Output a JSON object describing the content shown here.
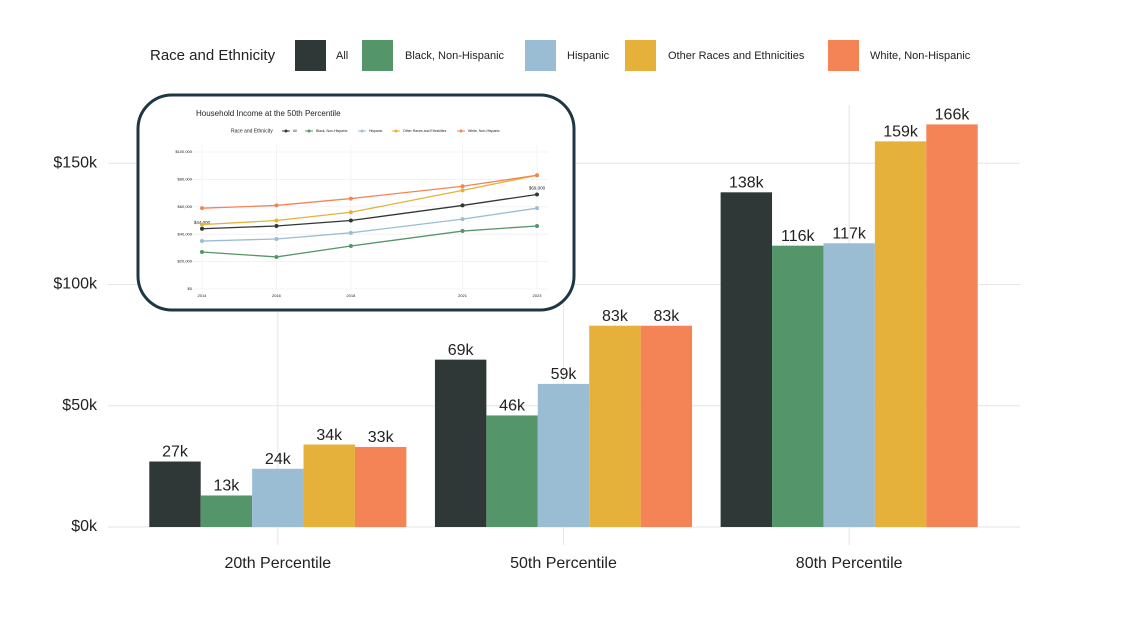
{
  "chart_data": [
    {
      "type": "bar",
      "legend_title": "Race and Ethnicity",
      "categories": [
        "20th Percentile",
        "50th Percentile",
        "80th Percentile"
      ],
      "series": [
        {
          "name": "All",
          "color": "#2f3836",
          "values": [
            27,
            69,
            138
          ],
          "value_labels": [
            "27k",
            "69k",
            "138k"
          ]
        },
        {
          "name": "Black, Non-Hispanic",
          "color": "#55956a",
          "values": [
            13,
            46,
            116
          ],
          "value_labels": [
            "13k",
            "46k",
            "116k"
          ]
        },
        {
          "name": "Hispanic",
          "color": "#9bbdd4",
          "values": [
            24,
            59,
            117
          ],
          "value_labels": [
            "24k",
            "59k",
            "117k"
          ]
        },
        {
          "name": "Other Races and Ethnicities",
          "color": "#e6b13a",
          "values": [
            34,
            83,
            159
          ],
          "value_labels": [
            "34k",
            "83k",
            "159k"
          ]
        },
        {
          "name": "White, Non-Hispanic",
          "color": "#f48455",
          "values": [
            33,
            83,
            166
          ],
          "value_labels": [
            "33k",
            "83k",
            "166k"
          ]
        }
      ],
      "ylim": [
        0,
        174
      ],
      "yticks": [
        {
          "value": 0,
          "label": "$0k"
        },
        {
          "value": 50,
          "label": "$50k"
        },
        {
          "value": 100,
          "label": "$100k"
        },
        {
          "value": 150,
          "label": "$150k"
        }
      ],
      "grid": true
    },
    {
      "type": "line",
      "title": "Household Income at the 50th Percentile",
      "legend_title": "Race and Ethnicity",
      "x": [
        2014,
        2016,
        2018,
        2021,
        2023
      ],
      "series": [
        {
          "name": "All",
          "color": "#2f3836",
          "values": [
            44000,
            46000,
            50000,
            61000,
            69000
          ],
          "value_labels": [
            "$44,000",
            null,
            null,
            null,
            "$69,000"
          ]
        },
        {
          "name": "Black, Non-Hispanic",
          "color": "#55956a",
          "values": [
            27000,
            23400,
            31400,
            42300,
            46000
          ]
        },
        {
          "name": "Hispanic",
          "color": "#9bbdd4",
          "values": [
            35000,
            36500,
            41000,
            51000,
            59000
          ]
        },
        {
          "name": "Other Races and Ethnicities",
          "color": "#e6b13a",
          "values": [
            47000,
            50000,
            56000,
            72000,
            83000
          ]
        },
        {
          "name": "White, Non-Hispanic",
          "color": "#f48455",
          "values": [
            59000,
            61000,
            66000,
            75000,
            83000
          ]
        }
      ],
      "xlim": [
        2014,
        2023
      ],
      "xticks": [
        2014,
        2016,
        2018,
        2021,
        2023
      ],
      "ylim": [
        0,
        100000
      ],
      "yticks": [
        {
          "value": 0,
          "label": "$0"
        },
        {
          "value": 20000,
          "label": "$20,000"
        },
        {
          "value": 40000,
          "label": "$40,000"
        },
        {
          "value": 60000,
          "label": "$60,000"
        },
        {
          "value": 80000,
          "label": "$80,000"
        },
        {
          "value": 100000,
          "label": "$100,000"
        }
      ],
      "grid": true
    }
  ]
}
